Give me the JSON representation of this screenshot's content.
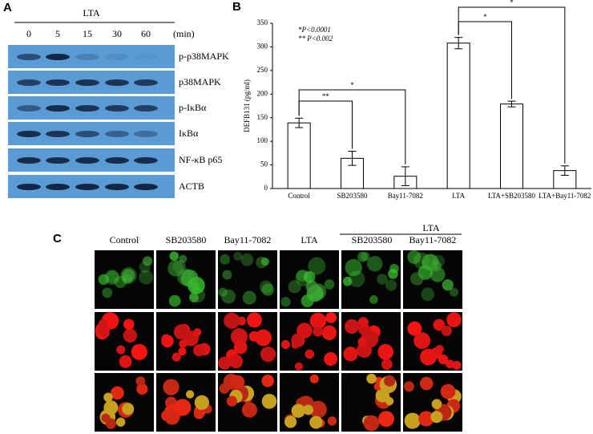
{
  "panel_a": {
    "label": "A",
    "treatment": "LTA",
    "times": [
      "0",
      "5",
      "15",
      "30",
      "60"
    ],
    "time_unit": "(min)",
    "proteins": [
      "p-p38MAPK",
      "p38MAPK",
      "p-IκBα",
      "IκBα",
      "NF-κB p65",
      "ACTB"
    ]
  },
  "chart_data": {
    "type": "bar",
    "panel_label": "B",
    "ylabel": "DEFB131 (pg/ml)",
    "categories": [
      "Control",
      "SB203580",
      "Bay11-7082",
      "LTA",
      "LTA+SB203580",
      "LTA+Bay11-7082"
    ],
    "values": [
      139,
      64,
      26,
      308,
      179,
      38
    ],
    "errors": [
      10,
      15,
      20,
      12,
      6,
      10
    ],
    "color": "#ffffff",
    "edge_color": "#000000",
    "ylim": [
      0,
      350
    ],
    "yticks": [
      0,
      50,
      100,
      150,
      200,
      250,
      300,
      350
    ],
    "annotations": [
      "*P<0.0001",
      "** P<0.002"
    ],
    "brackets": [
      {
        "label": "**",
        "pair": [
          "Control",
          "SB203580"
        ]
      },
      {
        "label": "*",
        "pair": [
          "Control",
          "Bay11-7082"
        ]
      },
      {
        "label": "*",
        "pair": [
          "LTA",
          "LTA+SB203580"
        ]
      },
      {
        "label": "*",
        "pair": [
          "LTA",
          "LTA+Bay11-7082"
        ]
      }
    ]
  },
  "panel_c": {
    "label": "C",
    "columns": [
      "Control",
      "SB203580",
      "Bay11-7082",
      "LTA",
      "SB203580",
      "Bay11-7082"
    ],
    "group_label": "LTA"
  }
}
